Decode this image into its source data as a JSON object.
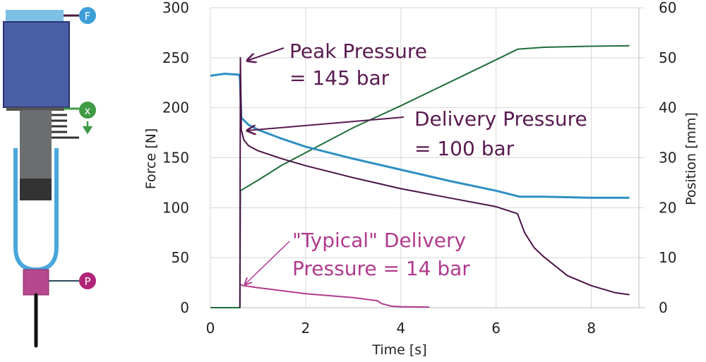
{
  "diagram": {
    "labels": {
      "force": "F",
      "position": "x",
      "pressure": "P"
    },
    "colors": {
      "force_sensor": "#3c9fd8",
      "position_sensor": "#3f9a45",
      "pressure_sensor": "#b0257a",
      "actuator": "#4a5ea8",
      "barrel": "#4aa6dc",
      "pressure_block": "#b5488f"
    }
  },
  "chart_data": {
    "type": "line",
    "xlabel": "Time [s]",
    "ylabel": "Force [N]",
    "y2label": "Position [mm]",
    "xlim": [
      0,
      9
    ],
    "ylim": [
      0,
      300
    ],
    "y2lim": [
      0,
      60
    ],
    "xticks": [
      "0",
      "2",
      "4",
      "6",
      "8"
    ],
    "yticks": [
      "0",
      "50",
      "100",
      "150",
      "200",
      "250",
      "300"
    ],
    "y2ticks": [
      "0",
      "10",
      "20",
      "30",
      "40",
      "50",
      "60"
    ],
    "grid": true,
    "series": [
      {
        "name": "Force",
        "axis": "left",
        "color": "#2f8fc4",
        "x": [
          0,
          0.3,
          0.6,
          0.62,
          0.65,
          0.8,
          1,
          1.5,
          2,
          3,
          4,
          5,
          6,
          6.5,
          7,
          8,
          8.8
        ],
        "y": [
          232,
          234,
          233,
          230,
          190,
          183,
          178,
          169,
          161,
          149,
          138,
          127,
          117,
          111,
          111,
          110,
          110
        ]
      },
      {
        "name": "Pressure",
        "axis": "left",
        "color": "#4a1245",
        "x": [
          0.62,
          0.63,
          0.65,
          0.7,
          0.8,
          1,
          1.5,
          2,
          3,
          4,
          5,
          6,
          6.45,
          6.6,
          6.8,
          7,
          7.5,
          8,
          8.5,
          8.8
        ],
        "y": [
          0,
          250,
          178,
          168,
          162,
          157,
          149,
          142,
          130,
          119,
          110,
          101,
          94,
          75,
          60,
          51,
          32,
          22,
          15,
          13
        ]
      },
      {
        "name": "Position",
        "axis": "right",
        "color": "#1f6e3b",
        "x": [
          0,
          0.62,
          0.63,
          1,
          1.5,
          2,
          3,
          4,
          5,
          6,
          6.45,
          7,
          8,
          8.8
        ],
        "y": [
          0,
          0,
          23.4,
          25.5,
          28.5,
          31,
          36,
          40.4,
          45,
          49.6,
          51.7,
          52.1,
          52.3,
          52.4
        ]
      },
      {
        "name": "Typical Delivery Pressure",
        "axis": "left",
        "color": "#b03a8e",
        "x": [
          0.63,
          0.7,
          1,
          2,
          3,
          3.5,
          3.6,
          3.8,
          4,
          4.6
        ],
        "y": [
          23,
          22,
          20,
          14,
          10,
          7,
          4,
          1.5,
          1,
          0.5
        ]
      }
    ],
    "annotations": [
      {
        "line1": "Peak Pressure",
        "line2": "= 145 bar",
        "color": "#5a1a50",
        "target": [
          0.63,
          250
        ]
      },
      {
        "line1": "Delivery Pressure",
        "line2": "= 100 bar",
        "color": "#5a1a50",
        "target": [
          0.68,
          177
        ]
      },
      {
        "line1": "\"Typical\" Delivery",
        "line2": "Pressure = 14 bar",
        "color": "#b03a8e",
        "target": [
          0.68,
          23
        ]
      }
    ]
  }
}
